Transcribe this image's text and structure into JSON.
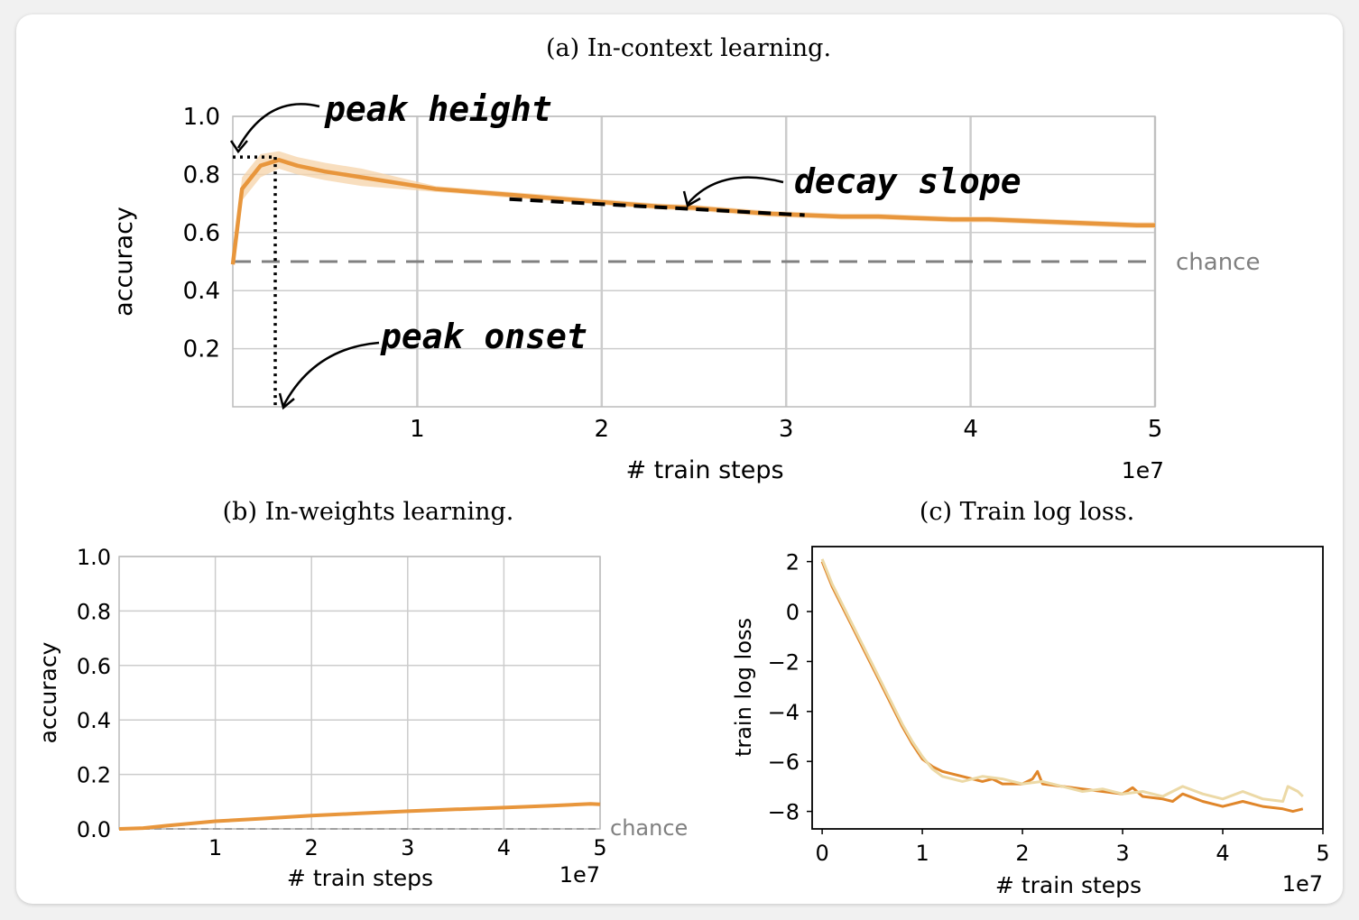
{
  "chart_data": [
    {
      "type": "line",
      "title": "(a) In-context learning.",
      "xlabel": "# train steps",
      "ylabel": "accuracy",
      "x_offset_label": "1e7",
      "xlim": [
        0,
        5
      ],
      "ylim": [
        0,
        1.0
      ],
      "xticks": [
        "1",
        "2",
        "3",
        "4",
        "5"
      ],
      "yticks": [
        "0.2",
        "0.4",
        "0.6",
        "0.8",
        "1.0"
      ],
      "grid": true,
      "colors": {
        "line": "#e8963c",
        "band": "#f6d3a8",
        "chance": "#808080",
        "annotation": "#000000"
      },
      "series": [
        {
          "x": [
            0,
            0.05,
            0.15,
            0.25,
            0.35,
            0.5,
            0.7,
            0.9,
            1.1,
            1.3,
            1.5,
            1.7,
            1.9,
            2.1,
            2.3,
            2.5,
            2.7,
            2.9,
            3.1,
            3.3,
            3.5,
            3.7,
            3.9,
            4.1,
            4.3,
            4.5,
            4.7,
            4.9,
            5.0
          ],
          "y": [
            0.49,
            0.75,
            0.83,
            0.85,
            0.83,
            0.81,
            0.79,
            0.77,
            0.75,
            0.74,
            0.73,
            0.72,
            0.71,
            0.7,
            0.69,
            0.685,
            0.675,
            0.665,
            0.66,
            0.655,
            0.655,
            0.65,
            0.645,
            0.645,
            0.64,
            0.635,
            0.63,
            0.625,
            0.625
          ],
          "upper": [
            0.5,
            0.79,
            0.87,
            0.88,
            0.86,
            0.84,
            0.82,
            0.79,
            0.76,
            0.75,
            0.74,
            0.73,
            0.72,
            0.71,
            0.7,
            0.695,
            0.685,
            0.675,
            0.67,
            0.665,
            0.665,
            0.66,
            0.655,
            0.655,
            0.65,
            0.645,
            0.64,
            0.635,
            0.635
          ],
          "lower": [
            0.48,
            0.71,
            0.79,
            0.82,
            0.8,
            0.78,
            0.76,
            0.75,
            0.74,
            0.73,
            0.72,
            0.71,
            0.7,
            0.69,
            0.68,
            0.675,
            0.665,
            0.655,
            0.65,
            0.645,
            0.645,
            0.64,
            0.635,
            0.635,
            0.63,
            0.625,
            0.62,
            0.615,
            0.615
          ]
        }
      ],
      "chance_level": 0.5,
      "chance_label": "chance",
      "annotations": {
        "peak_height": {
          "label": "peak height",
          "value": 0.86
        },
        "peak_onset": {
          "label": "peak onset",
          "x": 0.23
        },
        "decay_slope": {
          "label": "decay slope",
          "x": [
            1.5,
            3.1
          ],
          "y": [
            0.715,
            0.66
          ]
        }
      }
    },
    {
      "type": "line",
      "title": "(b) In-weights learning.",
      "xlabel": "# train steps",
      "ylabel": "accuracy",
      "x_offset_label": "1e7",
      "xlim": [
        0,
        5
      ],
      "ylim": [
        0,
        1.0
      ],
      "xticks": [
        "1",
        "2",
        "3",
        "4",
        "5"
      ],
      "yticks": [
        "0.0",
        "0.2",
        "0.4",
        "0.6",
        "0.8",
        "1.0"
      ],
      "grid": true,
      "colors": {
        "line": "#e8963c",
        "chance": "#a0a0a0"
      },
      "series": [
        {
          "x": [
            0,
            0.25,
            0.5,
            1.0,
            1.5,
            2.0,
            2.5,
            3.0,
            3.5,
            4.0,
            4.5,
            4.9,
            5.0
          ],
          "y": [
            0.0,
            0.003,
            0.012,
            0.028,
            0.038,
            0.049,
            0.057,
            0.065,
            0.072,
            0.078,
            0.085,
            0.092,
            0.09
          ]
        }
      ],
      "chance_level": 0.0,
      "chance_label": "chance"
    },
    {
      "type": "line",
      "title": "(c) Train log loss.",
      "xlabel": "# train steps",
      "ylabel": "train log loss",
      "x_offset_label": "1e7",
      "xlim": [
        -0.1,
        5.0
      ],
      "ylim": [
        -8.7,
        2.6
      ],
      "xticks": [
        "0",
        "1",
        "2",
        "3",
        "4",
        "5"
      ],
      "yticks": [
        "2",
        "0",
        "−2",
        "−4",
        "−6",
        "−8"
      ],
      "grid": false,
      "colors": {
        "dark": "#e0862a",
        "light": "#ecd9a6"
      },
      "series": [
        {
          "x": [
            0,
            0.1,
            0.2,
            0.3,
            0.4,
            0.5,
            0.6,
            0.7,
            0.8,
            0.9,
            1.0,
            1.1,
            1.2,
            1.4,
            1.6,
            1.7,
            1.8,
            2.0,
            2.1,
            2.15,
            2.2,
            2.4,
            2.6,
            2.8,
            3.0,
            3.1,
            3.2,
            3.4,
            3.5,
            3.6,
            3.8,
            4.0,
            4.2,
            4.4,
            4.6,
            4.7,
            4.8
          ],
          "y": [
            2.0,
            1.0,
            0.2,
            -0.6,
            -1.4,
            -2.2,
            -3.0,
            -3.8,
            -4.6,
            -5.3,
            -5.9,
            -6.2,
            -6.4,
            -6.6,
            -6.8,
            -6.7,
            -6.9,
            -6.9,
            -6.7,
            -6.4,
            -6.9,
            -7.0,
            -7.1,
            -7.2,
            -7.3,
            -7.05,
            -7.4,
            -7.5,
            -7.6,
            -7.3,
            -7.6,
            -7.8,
            -7.6,
            -7.8,
            -7.9,
            -8.0,
            -7.9
          ]
        },
        {
          "x": [
            0,
            0.1,
            0.2,
            0.3,
            0.4,
            0.5,
            0.6,
            0.7,
            0.8,
            0.9,
            1.0,
            1.1,
            1.2,
            1.4,
            1.6,
            1.8,
            2.0,
            2.2,
            2.4,
            2.6,
            2.8,
            3.0,
            3.2,
            3.4,
            3.6,
            3.8,
            4.0,
            4.2,
            4.4,
            4.6,
            4.65,
            4.75,
            4.8
          ],
          "y": [
            2.1,
            1.1,
            0.3,
            -0.5,
            -1.3,
            -2.1,
            -2.9,
            -3.7,
            -4.5,
            -5.2,
            -5.8,
            -6.3,
            -6.6,
            -6.8,
            -6.6,
            -6.7,
            -6.9,
            -6.8,
            -7.0,
            -7.2,
            -7.1,
            -7.3,
            -7.2,
            -7.4,
            -7.0,
            -7.3,
            -7.5,
            -7.2,
            -7.5,
            -7.6,
            -7.0,
            -7.2,
            -7.4
          ]
        }
      ]
    }
  ]
}
